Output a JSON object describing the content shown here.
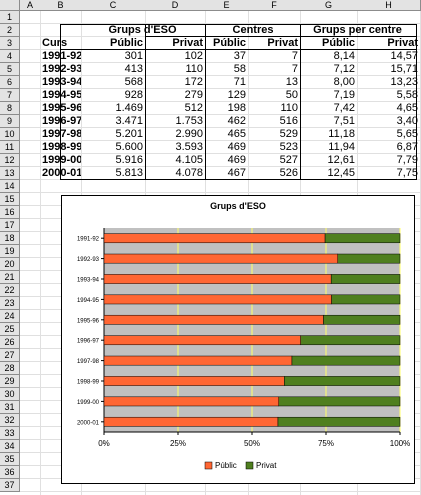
{
  "sheet": {
    "columns": [
      "A",
      "B",
      "C",
      "D",
      "E",
      "F",
      "G",
      "H"
    ],
    "rows": [
      "1",
      "2",
      "3",
      "4",
      "5",
      "6",
      "7",
      "8",
      "9",
      "10",
      "11",
      "12",
      "13",
      "14",
      "15",
      "16",
      "17",
      "18",
      "19",
      "20",
      "21",
      "22",
      "23",
      "24",
      "25",
      "26",
      "27",
      "28",
      "29",
      "30",
      "31",
      "32",
      "33",
      "34",
      "35",
      "36",
      "37"
    ]
  },
  "table": {
    "group_headers": {
      "grups": "Grups d'ESO",
      "centres": "Centres",
      "per_centre": "Grups per centre"
    },
    "col_headers": [
      "Curs",
      "Públic",
      "Privat",
      "Públic",
      "Privat",
      "Públic",
      "Privat"
    ],
    "rows": [
      [
        "1991-92",
        "301",
        "102",
        "37",
        "7",
        "8,14",
        "14,57"
      ],
      [
        "1992-93",
        "413",
        "110",
        "58",
        "7",
        "7,12",
        "15,71"
      ],
      [
        "1993-94",
        "568",
        "172",
        "71",
        "13",
        "8,00",
        "13,23"
      ],
      [
        "1994-95",
        "928",
        "279",
        "129",
        "50",
        "7,19",
        "5,58"
      ],
      [
        "1995-96",
        "1.469",
        "512",
        "198",
        "110",
        "7,42",
        "4,65"
      ],
      [
        "1996-97",
        "3.471",
        "1.753",
        "462",
        "516",
        "7,51",
        "3,40"
      ],
      [
        "1997-98",
        "5.201",
        "2.990",
        "465",
        "529",
        "11,18",
        "5,65"
      ],
      [
        "1998-99",
        "5.600",
        "3.593",
        "469",
        "523",
        "11,94",
        "6,87"
      ],
      [
        "1999-00",
        "5.916",
        "4.105",
        "469",
        "527",
        "12,61",
        "7,79"
      ],
      [
        "2000-01",
        "5.813",
        "4.078",
        "467",
        "526",
        "12,45",
        "7,75"
      ]
    ]
  },
  "colors": {
    "public": "#ff6633",
    "private": "#4f7f1f",
    "plot_bg": "#c0c0c0",
    "gridline": "#ffff66"
  },
  "chart_data": {
    "type": "bar",
    "orientation": "horizontal",
    "stacking": "percent",
    "title": "Grups d'ESO",
    "categories": [
      "1991-92",
      "1992-93",
      "1993-94",
      "1994-95",
      "1995-96",
      "1996-97",
      "1997-98",
      "1998-99",
      "1999-00",
      "2000-01"
    ],
    "series": [
      {
        "name": "Públic",
        "values": [
          301,
          413,
          568,
          928,
          1469,
          3471,
          5201,
          5600,
          5916,
          5813
        ]
      },
      {
        "name": "Privat",
        "values": [
          102,
          110,
          172,
          279,
          512,
          1753,
          2990,
          3593,
          4105,
          4078
        ]
      }
    ],
    "xlim": [
      0,
      100
    ],
    "xticks": [
      "0%",
      "25%",
      "50%",
      "75%",
      "100%"
    ],
    "grid": true,
    "legend": "bottom"
  }
}
